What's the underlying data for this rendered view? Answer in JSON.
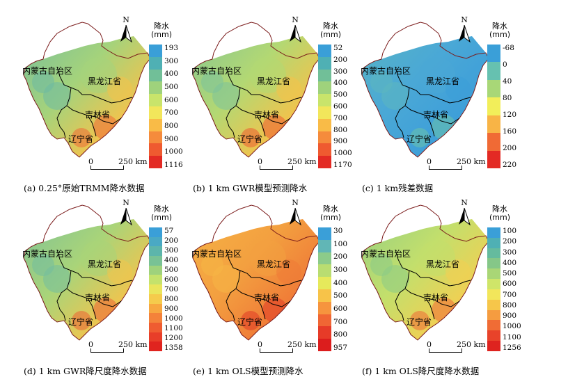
{
  "north_label": "N",
  "scale": {
    "zero": "0",
    "distance": "250 km"
  },
  "provinces": {
    "nm": "内蒙古自治区",
    "hlj": "黑龙江省",
    "jl": "吉林省",
    "ln": "辽宁省"
  },
  "panels": [
    {
      "caption": "(a) 0.25°原始TRMM降水数据",
      "legend_title_1": "降水",
      "legend_title_2": "(mm)",
      "legend_labels": [
        "193",
        "300",
        "400",
        "500",
        "600",
        "700",
        "800",
        "900",
        "1000",
        "1116"
      ],
      "colors": [
        "#3a9fd8",
        "#4fb0b4",
        "#71bf98",
        "#9fd27c",
        "#c9e46b",
        "#f2e65b",
        "#f9bb47",
        "#f58b3c",
        "#ef5a30",
        "#e32a24"
      ],
      "fill_base": "#a5d37b",
      "fill_west": "#6dbaa3",
      "fill_east": "#f3c34c",
      "fill_se": "#ee6a36"
    },
    {
      "caption": "(b) 1 km GWR模型预测降水",
      "legend_title_1": "降水",
      "legend_title_2": "(mm)",
      "legend_labels": [
        "52",
        "200",
        "300",
        "400",
        "500",
        "600",
        "700",
        "800",
        "900",
        "1000",
        "1170"
      ],
      "colors": [
        "#3a9fd8",
        "#4fb0b4",
        "#71bf98",
        "#9fd27c",
        "#c9e46b",
        "#f2e65b",
        "#f9bb47",
        "#f58b3c",
        "#ef5a30",
        "#e32a24"
      ],
      "fill_base": "#b3d873",
      "fill_west": "#7cc29a",
      "fill_east": "#f4c24a",
      "fill_se": "#ec5b32"
    },
    {
      "caption": "(c) 1 km残差数据",
      "legend_title_1": "降水",
      "legend_title_2": "(mm)",
      "legend_labels": [
        "-68",
        "0",
        "40",
        "80",
        "120",
        "160",
        "200",
        "220"
      ],
      "colors": [
        "#3a9fd8",
        "#66c1b0",
        "#a8d777",
        "#f2ee5a",
        "#f8b446",
        "#f06a35",
        "#e32a24"
      ],
      "fill_base": "#4aa8d6",
      "fill_west": "#5cb7c0",
      "fill_east": "#3d9ed9",
      "fill_se": "#6cc2a9"
    },
    {
      "caption": "(d) 1 km GWR降尺度降水数据",
      "legend_title_1": "降水",
      "legend_title_2": "(mm)",
      "legend_labels": [
        "57",
        "200",
        "300",
        "400",
        "500",
        "600",
        "700",
        "800",
        "900",
        "1000",
        "1100",
        "1200",
        "1358"
      ],
      "colors": [
        "#3a9fd8",
        "#4aa9c4",
        "#5db5ab",
        "#79c295",
        "#9fd27c",
        "#c5e26c",
        "#eae55c",
        "#f5cb4c",
        "#f7a740",
        "#f4823a",
        "#ef5c31",
        "#e83e29",
        "#e0241f"
      ],
      "fill_base": "#a9d479",
      "fill_west": "#73bd9e",
      "fill_east": "#f2c44d",
      "fill_se": "#ed6334"
    },
    {
      "caption": "(e) 1 km OLS模型预测降水",
      "legend_title_1": "降水",
      "legend_title_2": "(mm)",
      "legend_labels": [
        "30",
        "100",
        "200",
        "300",
        "400",
        "500",
        "600",
        "700",
        "800",
        "957"
      ],
      "colors": [
        "#3a9fd8",
        "#61b6b6",
        "#8ccb8a",
        "#b9dd71",
        "#e6e95b",
        "#f7c349",
        "#f6943e",
        "#f06634",
        "#e63b28",
        "#dc1d1d"
      ],
      "fill_base": "#f3a040",
      "fill_west": "#f6b646",
      "fill_east": "#ef7a37",
      "fill_se": "#e03a27"
    },
    {
      "caption": "(f) 1 km OLS降尺度降水数据",
      "legend_title_1": "降水",
      "legend_title_2": "(mm)",
      "legend_labels": [
        "100",
        "200",
        "300",
        "400",
        "500",
        "600",
        "700",
        "800",
        "900",
        "1000",
        "1100",
        "1256"
      ],
      "colors": [
        "#3a9fd8",
        "#4fb0b4",
        "#65bb9e",
        "#85c788",
        "#a9d676",
        "#cfe569",
        "#f2e65b",
        "#f6c64a",
        "#f59c40",
        "#f06c35",
        "#e8432a",
        "#de231f"
      ],
      "fill_base": "#c3df6c",
      "fill_west": "#8acb87",
      "fill_east": "#f2cf52",
      "fill_se": "#ee6a36"
    }
  ]
}
